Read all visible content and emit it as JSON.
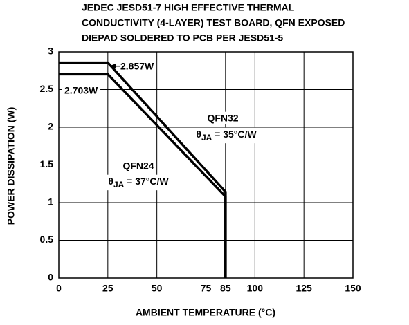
{
  "chart_data": {
    "type": "line",
    "title": [
      "JEDEC JESD51-7 HIGH EFFECTIVE THERMAL",
      "CONDUCTIVITY (4-LAYER) TEST BOARD, QFN EXPOSED",
      "DIEPAD SOLDERED TO PCB PER JESD51-5"
    ],
    "x_label": "AMBIENT TEMPERATURE (°C)",
    "y_label": "POWER DISSIPATION (W)",
    "xlim": [
      0,
      150
    ],
    "xticks": [
      0,
      25,
      50,
      75,
      85,
      100,
      125,
      150
    ],
    "ylim": [
      0,
      3
    ],
    "yticks": [
      0,
      0.5,
      1,
      1.5,
      2,
      2.5,
      3
    ],
    "grid": true,
    "series": [
      {
        "name": "QFN32",
        "color": "#000000",
        "x": [
          0,
          25,
          85,
          85
        ],
        "values": [
          2.857,
          2.857,
          1.143,
          0
        ]
      },
      {
        "name": "QFN24",
        "color": "#000000",
        "x": [
          0,
          25,
          85,
          85
        ],
        "values": [
          2.703,
          2.703,
          1.081,
          0
        ]
      }
    ],
    "annotations": {
      "qfn32_power": "2.857W",
      "qfn24_power": "2.703W",
      "qfn32_theta": {
        "symbol": "θ",
        "subscript": "JA",
        "text": " = 35°C/W"
      },
      "qfn24_theta": {
        "symbol": "θ",
        "subscript": "JA",
        "text": " = 37°C/W"
      }
    }
  }
}
